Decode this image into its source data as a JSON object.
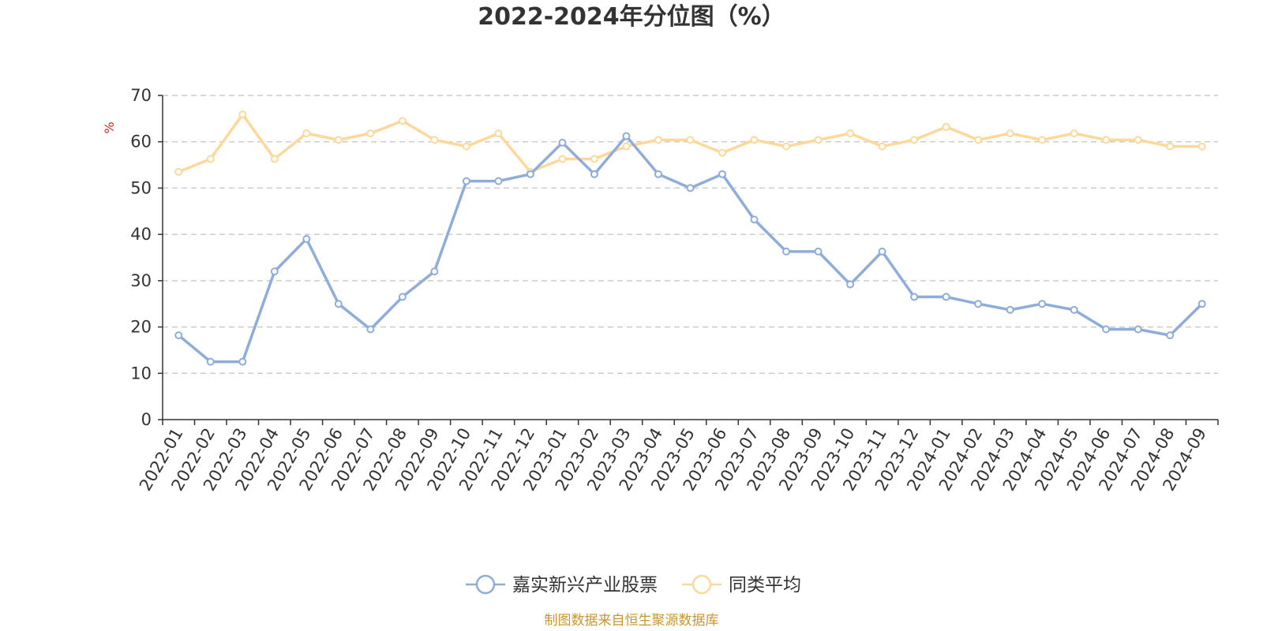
{
  "chart_data": {
    "type": "line",
    "title": "2022-2024年分位图（%）",
    "ylabel": "%",
    "xlabel": "",
    "ylim": [
      0,
      70
    ],
    "yticks": [
      0,
      10,
      20,
      30,
      40,
      50,
      60,
      70
    ],
    "grid": true,
    "legend_position": "bottom",
    "categories": [
      "2022-01",
      "2022-02",
      "2022-03",
      "2022-04",
      "2022-05",
      "2022-06",
      "2022-07",
      "2022-08",
      "2022-09",
      "2022-10",
      "2022-11",
      "2022-12",
      "2023-01",
      "2023-02",
      "2023-03",
      "2023-04",
      "2023-05",
      "2023-06",
      "2023-07",
      "2023-08",
      "2023-09",
      "2023-10",
      "2023-11",
      "2023-12",
      "2024-01",
      "2024-02",
      "2024-03",
      "2024-04",
      "2024-05",
      "2024-06",
      "2024-07",
      "2024-08",
      "2024-09"
    ],
    "series": [
      {
        "name": "嘉实新兴产业股票",
        "color": "#8eaddb",
        "values": [
          18.2,
          12.5,
          12.5,
          32.0,
          39.0,
          25.0,
          19.5,
          26.5,
          32.0,
          51.5,
          51.5,
          53.0,
          59.8,
          53.0,
          61.2,
          53.0,
          50.0,
          53.0,
          43.2,
          36.3,
          36.3,
          29.2,
          36.3,
          26.5,
          26.5,
          25.0,
          23.7,
          25.0,
          23.7,
          19.5,
          19.5,
          18.2,
          25.0
        ]
      },
      {
        "name": "同类平均",
        "color": "#fcd99a",
        "values": [
          53.5,
          56.3,
          65.9,
          56.3,
          61.8,
          60.4,
          61.8,
          64.5,
          60.4,
          59.0,
          61.8,
          53.5,
          56.3,
          56.3,
          59.0,
          60.4,
          60.4,
          57.6,
          60.4,
          59.0,
          60.4,
          61.8,
          59.0,
          60.4,
          63.2,
          60.4,
          61.8,
          60.4,
          61.8,
          60.4,
          60.4,
          59.0,
          59.0
        ]
      }
    ]
  },
  "footer": {
    "source": "制图数据来自恒生聚源数据库"
  },
  "colors": {
    "axis": "#333333",
    "grid": "#cccccc",
    "ylabel": "#e02020",
    "source": "#c9962f"
  }
}
